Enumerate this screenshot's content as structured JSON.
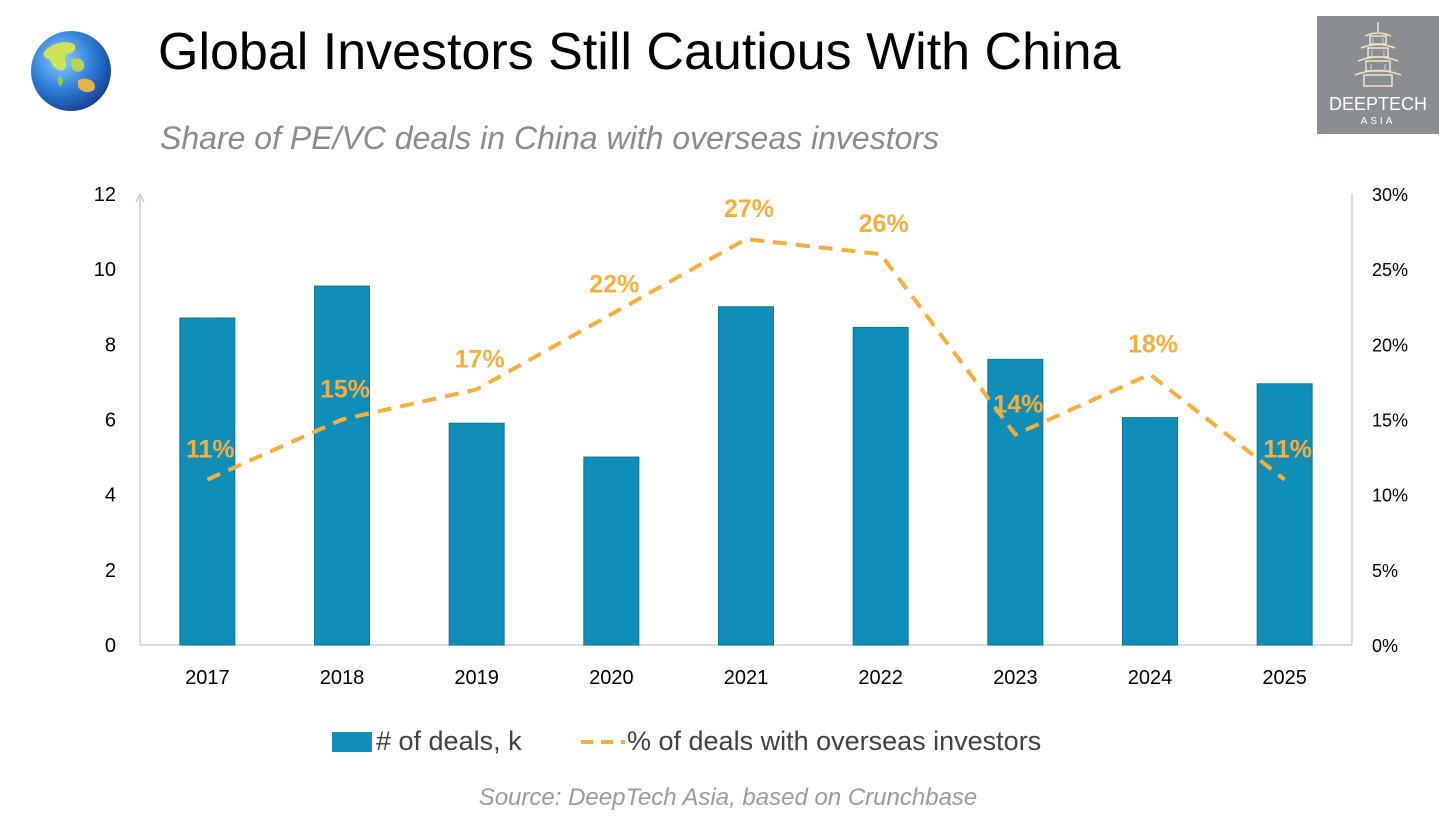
{
  "header": {
    "title": "Global Investors Still Cautious With China",
    "subtitle": "Share of PE/VC deals in China with overseas investors"
  },
  "logo": {
    "name": "DEEPTECH",
    "sub": "ASIA"
  },
  "source": "Source: DeepTech Asia, based on Crunchbase",
  "chart_data": {
    "type": "bar",
    "title": "Global Investors Still Cautious With China",
    "subtitle": "Share of PE/VC deals in China with overseas investors",
    "categories": [
      "2017",
      "2018",
      "2019",
      "2020",
      "2021",
      "2022",
      "2023",
      "2024",
      "2025"
    ],
    "series": [
      {
        "name": "# of deals, k",
        "type": "bar",
        "axis": "left",
        "color": "#118eb8",
        "values": [
          8.7,
          9.55,
          5.9,
          5.0,
          9.0,
          8.45,
          7.6,
          6.05,
          6.95
        ]
      },
      {
        "name": "% of deals with overseas investors",
        "type": "line",
        "style": "dashed",
        "axis": "right",
        "color": "#f7ad3b",
        "values": [
          11,
          15,
          17,
          22,
          27,
          26,
          14,
          18,
          11
        ],
        "labels": [
          "11%",
          "15%",
          "17%",
          "22%",
          "27%",
          "26%",
          "14%",
          "18%",
          "11%"
        ]
      }
    ],
    "y_left": {
      "min": 0,
      "max": 12,
      "ticks": [
        "0",
        "2",
        "4",
        "6",
        "8",
        "10",
        "12"
      ]
    },
    "y_right": {
      "min": 0,
      "max": 30,
      "ticks": [
        "0%",
        "5%",
        "10%",
        "15%",
        "20%",
        "25%",
        "30%"
      ]
    },
    "legend_position": "bottom",
    "grid": false
  },
  "colors": {
    "bar": "#118eb8",
    "line": "#f7ad3b",
    "axis": "#d0d0d0"
  }
}
